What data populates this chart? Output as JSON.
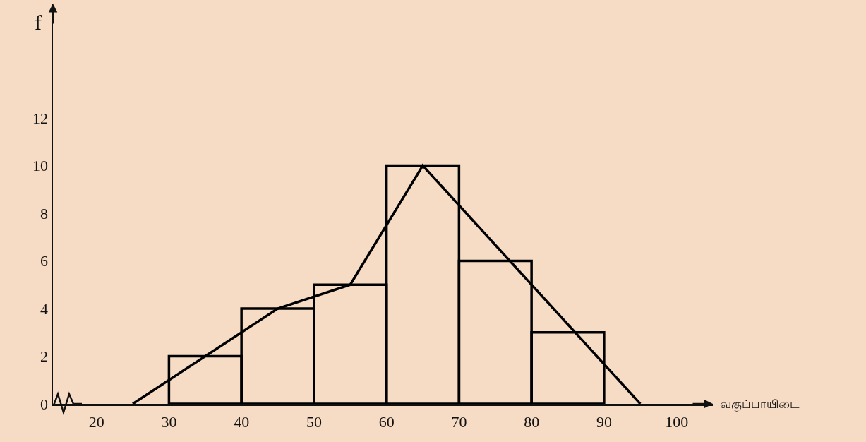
{
  "chart_data": {
    "type": "histogram",
    "xlabel": "வகுப்பாயிடை",
    "ylabel": "f",
    "bins": [
      30,
      40,
      50,
      60,
      70,
      80,
      90
    ],
    "values": [
      2,
      4,
      5,
      10,
      6,
      3
    ],
    "color": "#000000",
    "series": [
      {
        "type": "line",
        "x": [
          25,
          35,
          45,
          55,
          65,
          95
        ],
        "values": [
          0,
          2,
          4,
          5,
          10,
          0
        ],
        "color": "#000000"
      }
    ],
    "xlim": [
      14,
      105
    ],
    "xticks": [
      20,
      30,
      40,
      50,
      60,
      70,
      80,
      90,
      100
    ],
    "ylim": [
      0,
      16.8
    ],
    "yticks": [
      0,
      2,
      4,
      6,
      8,
      10,
      12
    ],
    "grid": false
  }
}
